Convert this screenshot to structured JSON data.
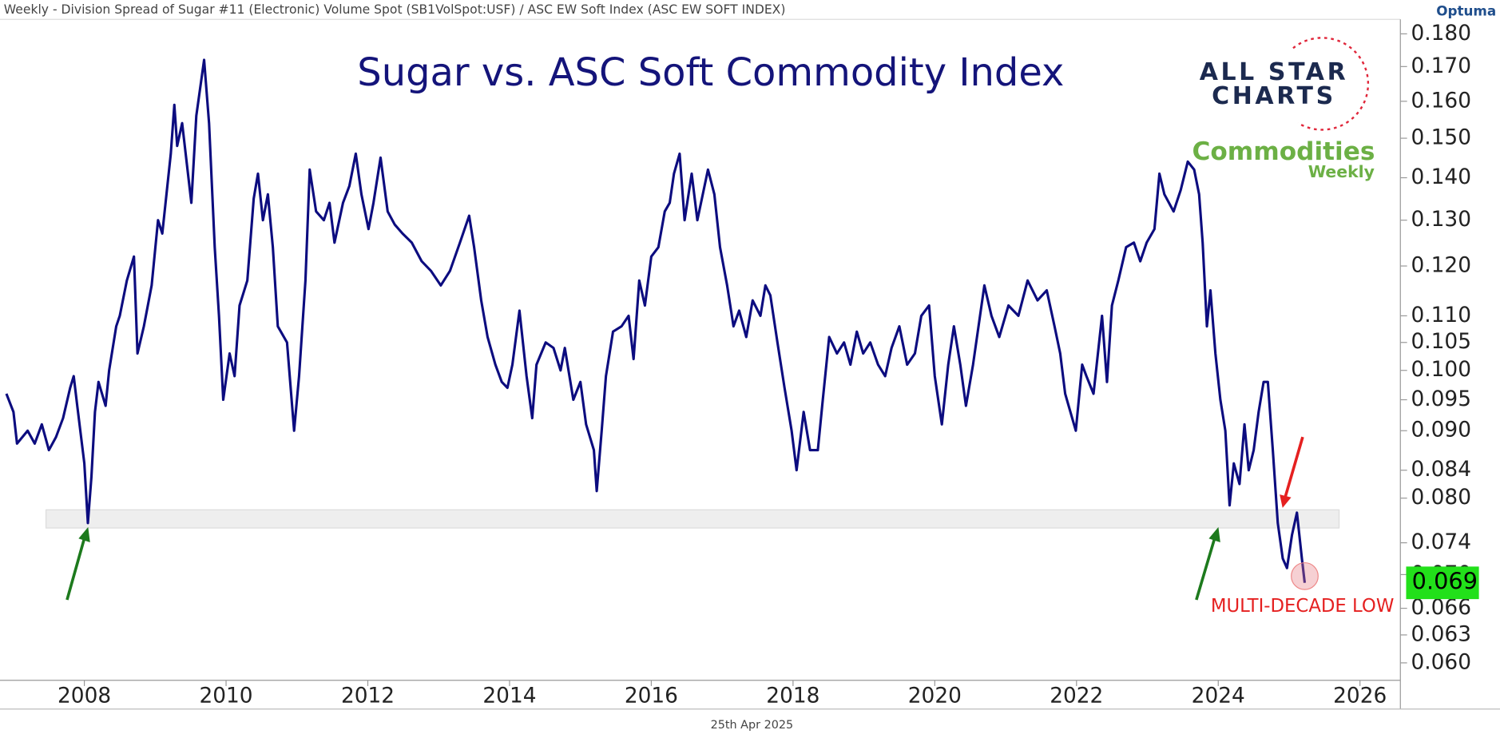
{
  "header": "Weekly - Division Spread of Sugar #11 (Electronic) Volume Spot (SB1VolSpot:USF) / ASC EW Soft Index (ASC EW SOFT INDEX)",
  "brand": "Optuma",
  "logo": {
    "line1": "ALL STAR",
    "line2": "CHARTS",
    "series_name": "Commodities",
    "series_sub": "Weekly"
  },
  "footer_date": "25th Apr 2025",
  "chart_data": {
    "type": "line",
    "title": "Sugar vs. ASC Soft Commodity Index",
    "annotation": "MULTI-DECADE LOW",
    "current_value_label": "0.069",
    "color": "#0c0c7f",
    "log_y": true,
    "grid": false,
    "xlim": [
      2006.81,
      2026.57
    ],
    "xticks": [
      2008,
      2010,
      2012,
      2014,
      2016,
      2018,
      2020,
      2022,
      2024,
      2026
    ],
    "ylim": [
      0.0582,
      0.1846
    ],
    "yticks": [
      {
        "value": 0.06,
        "label": "0.060"
      },
      {
        "value": 0.063,
        "label": "0.063"
      },
      {
        "value": 0.066,
        "label": "0.066"
      },
      {
        "value": 0.07,
        "label": "0.070"
      },
      {
        "value": 0.074,
        "label": "0.074"
      },
      {
        "value": 0.08,
        "label": "0.080"
      },
      {
        "value": 0.084,
        "label": "0.084"
      },
      {
        "value": 0.09,
        "label": "0.090"
      },
      {
        "value": 0.095,
        "label": "0.095"
      },
      {
        "value": 0.1,
        "label": "0.100"
      },
      {
        "value": 0.105,
        "label": "0.105"
      },
      {
        "value": 0.11,
        "label": "0.110"
      },
      {
        "value": 0.12,
        "label": "0.120"
      },
      {
        "value": 0.13,
        "label": "0.130"
      },
      {
        "value": 0.14,
        "label": "0.140"
      },
      {
        "value": 0.15,
        "label": "0.150"
      },
      {
        "value": 0.16,
        "label": "0.160"
      },
      {
        "value": 0.17,
        "label": "0.170"
      },
      {
        "value": 0.18,
        "label": "0.180"
      }
    ],
    "x": [
      2006.9,
      2007.0,
      2007.05,
      2007.2,
      2007.3,
      2007.4,
      2007.5,
      2007.6,
      2007.7,
      2007.8,
      2007.85,
      2007.9,
      2008.0,
      2008.05,
      2008.1,
      2008.15,
      2008.2,
      2008.3,
      2008.35,
      2008.45,
      2008.5,
      2008.6,
      2008.7,
      2008.75,
      2008.84,
      2008.95,
      2009.04,
      2009.1,
      2009.22,
      2009.27,
      2009.31,
      2009.38,
      2009.51,
      2009.58,
      2009.69,
      2009.76,
      2009.84,
      2009.9,
      2009.96,
      2010.05,
      2010.12,
      2010.19,
      2010.3,
      2010.39,
      2010.45,
      2010.52,
      2010.59,
      2010.66,
      2010.73,
      2010.86,
      2010.96,
      2011.03,
      2011.12,
      2011.18,
      2011.27,
      2011.38,
      2011.46,
      2011.53,
      2011.65,
      2011.74,
      2011.83,
      2011.91,
      2012.01,
      2012.08,
      2012.18,
      2012.28,
      2012.38,
      2012.49,
      2012.62,
      2012.76,
      2012.89,
      2013.03,
      2013.16,
      2013.3,
      2013.43,
      2013.5,
      2013.6,
      2013.69,
      2013.8,
      2013.89,
      2013.97,
      2014.04,
      2014.14,
      2014.24,
      2014.32,
      2014.38,
      2014.51,
      2014.62,
      2014.72,
      2014.78,
      2014.9,
      2015.0,
      2015.08,
      2015.19,
      2015.23,
      2015.3,
      2015.36,
      2015.46,
      2015.58,
      2015.68,
      2015.75,
      2015.83,
      2015.91,
      2016.0,
      2016.1,
      2016.19,
      2016.26,
      2016.32,
      2016.4,
      2016.47,
      2016.57,
      2016.65,
      2016.8,
      2016.89,
      2016.97,
      2017.07,
      2017.16,
      2017.24,
      2017.34,
      2017.43,
      2017.54,
      2017.61,
      2017.68,
      2017.78,
      2017.88,
      2017.98,
      2018.05,
      2018.15,
      2018.24,
      2018.35,
      2018.42,
      2018.51,
      2018.62,
      2018.72,
      2018.81,
      2018.9,
      2018.99,
      2019.09,
      2019.2,
      2019.3,
      2019.39,
      2019.5,
      2019.61,
      2019.72,
      2019.81,
      2019.92,
      2020.0,
      2020.1,
      2020.19,
      2020.27,
      2020.36,
      2020.44,
      2020.54,
      2020.7,
      2020.8,
      2020.91,
      2021.04,
      2021.18,
      2021.31,
      2021.45,
      2021.58,
      2021.69,
      2021.77,
      2021.84,
      2021.99,
      2022.08,
      2022.14,
      2022.24,
      2022.36,
      2022.43,
      2022.5,
      2022.59,
      2022.7,
      2022.81,
      2022.9,
      2022.99,
      2023.1,
      2023.17,
      2023.24,
      2023.37,
      2023.47,
      2023.57,
      2023.66,
      2023.73,
      2023.78,
      2023.84,
      2023.89,
      2023.96,
      2024.03,
      2024.1,
      2024.16,
      2024.22,
      2024.3,
      2024.37,
      2024.43,
      2024.5,
      2024.57,
      2024.64,
      2024.7,
      2024.77,
      2024.84,
      2024.91,
      2024.97,
      2025.04,
      2025.11,
      2025.18,
      2025.22
    ],
    "values": [
      0.096,
      0.093,
      0.088,
      0.09,
      0.088,
      0.091,
      0.087,
      0.089,
      0.092,
      0.097,
      0.099,
      0.094,
      0.085,
      0.0766,
      0.083,
      0.093,
      0.098,
      0.094,
      0.1,
      0.108,
      0.11,
      0.117,
      0.122,
      0.103,
      0.108,
      0.116,
      0.13,
      0.127,
      0.146,
      0.159,
      0.148,
      0.154,
      0.134,
      0.156,
      0.172,
      0.154,
      0.124,
      0.11,
      0.095,
      0.103,
      0.099,
      0.112,
      0.117,
      0.135,
      0.141,
      0.13,
      0.136,
      0.124,
      0.108,
      0.105,
      0.09,
      0.099,
      0.117,
      0.142,
      0.132,
      0.13,
      0.134,
      0.125,
      0.134,
      0.138,
      0.146,
      0.136,
      0.128,
      0.134,
      0.145,
      0.132,
      0.129,
      0.127,
      0.125,
      0.121,
      0.119,
      0.116,
      0.119,
      0.125,
      0.131,
      0.124,
      0.113,
      0.106,
      0.101,
      0.098,
      0.097,
      0.101,
      0.111,
      0.099,
      0.092,
      0.101,
      0.105,
      0.104,
      0.1,
      0.104,
      0.095,
      0.098,
      0.091,
      0.087,
      0.081,
      0.09,
      0.099,
      0.107,
      0.108,
      0.11,
      0.102,
      0.117,
      0.112,
      0.122,
      0.124,
      0.132,
      0.134,
      0.141,
      0.146,
      0.13,
      0.141,
      0.13,
      0.142,
      0.136,
      0.124,
      0.116,
      0.108,
      0.111,
      0.106,
      0.113,
      0.11,
      0.116,
      0.114,
      0.105,
      0.097,
      0.09,
      0.084,
      0.093,
      0.087,
      0.087,
      0.095,
      0.106,
      0.103,
      0.105,
      0.101,
      0.107,
      0.103,
      0.105,
      0.101,
      0.099,
      0.104,
      0.108,
      0.101,
      0.103,
      0.11,
      0.112,
      0.099,
      0.091,
      0.101,
      0.108,
      0.101,
      0.094,
      0.101,
      0.116,
      0.11,
      0.106,
      0.112,
      0.11,
      0.117,
      0.113,
      0.115,
      0.108,
      0.103,
      0.096,
      0.09,
      0.101,
      0.099,
      0.096,
      0.11,
      0.098,
      0.112,
      0.117,
      0.124,
      0.125,
      0.121,
      0.125,
      0.128,
      0.141,
      0.136,
      0.132,
      0.137,
      0.144,
      0.142,
      0.136,
      0.125,
      0.108,
      0.115,
      0.103,
      0.095,
      0.09,
      0.079,
      0.085,
      0.082,
      0.091,
      0.084,
      0.087,
      0.093,
      0.098,
      0.098,
      0.087,
      0.0766,
      0.072,
      0.0708,
      0.075,
      0.078,
      0.072,
      0.069
    ]
  }
}
